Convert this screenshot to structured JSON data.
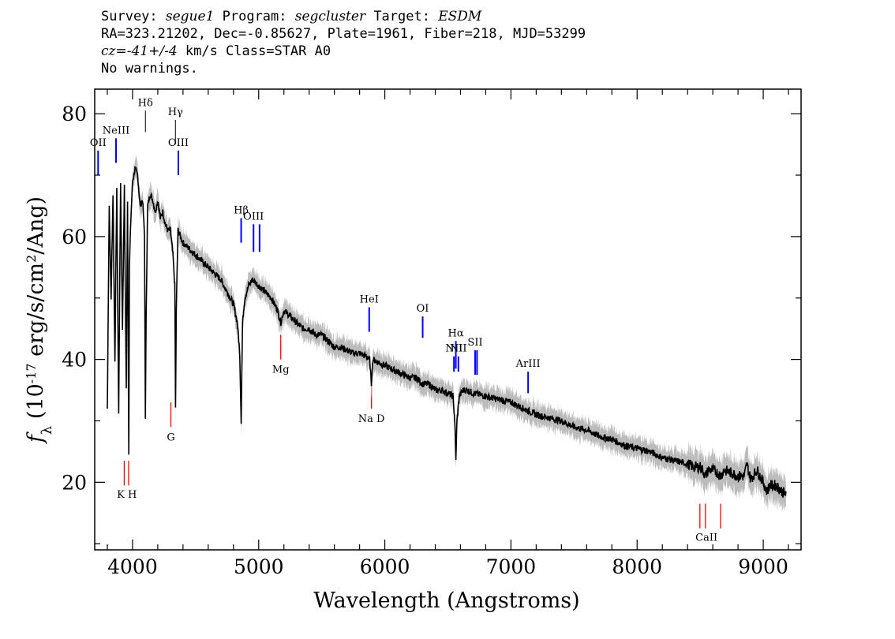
{
  "header": {
    "line1": {
      "survey_label": "Survey: ",
      "survey": "segue1",
      "program_label": " Program: ",
      "program": "segcluster",
      "target_label": " Target: ",
      "target": "ESDM"
    },
    "line2": "RA=323.21202, Dec=-0.85627, Plate=1961, Fiber=218, MJD=53299",
    "line3": {
      "cz": "cz=-41+/-4",
      "rest": " km/s Class=STAR A0"
    },
    "line4": "No warnings."
  },
  "chart_data": {
    "type": "line",
    "xlabel": "Wavelength (Angstroms)",
    "ylabel_f": "f",
    "ylabel_sub": "λ",
    "ylabel_rest_a": " (10",
    "ylabel_exp": "-17",
    "ylabel_rest_b": " erg/s/cm",
    "ylabel_exp2": "2",
    "ylabel_rest_c": "/Ang)",
    "xlim": [
      3700,
      9300
    ],
    "ylim": [
      9,
      84
    ],
    "x_ticks": [
      4000,
      5000,
      6000,
      7000,
      8000,
      9000
    ],
    "x_tick_labels": [
      "4000",
      "5000",
      "6000",
      "7000",
      "8000",
      "9000"
    ],
    "y_ticks": [
      20,
      40,
      60,
      80
    ],
    "y_tick_labels": [
      "20",
      "40",
      "60",
      "80"
    ],
    "colors": {
      "spectrum": "#000000",
      "error": "#bbbbbb",
      "emission": "#0000ff",
      "absorption": "#ff0000"
    },
    "series": [
      {
        "x": [
          3800,
          3815,
          3830,
          3845,
          3860,
          3875,
          3890,
          3905,
          3920,
          3935,
          3950,
          3960,
          3970,
          3975,
          3985,
          4000,
          4020,
          4040,
          4060,
          4080,
          4095,
          4102,
          4108,
          4120,
          4140,
          4160,
          4180,
          4200,
          4220,
          4240,
          4260,
          4280,
          4300,
          4320,
          4335,
          4341,
          4347,
          4360,
          4400,
          4450,
          4500,
          4550,
          4600,
          4650,
          4700,
          4750,
          4800,
          4830,
          4850,
          4861,
          4872,
          4890,
          4920,
          4950,
          5000,
          5050,
          5100,
          5150,
          5175,
          5200,
          5250,
          5300,
          5350,
          5400,
          5450,
          5500,
          5550,
          5600,
          5650,
          5700,
          5750,
          5800,
          5850,
          5880,
          5893,
          5905,
          5950,
          6000,
          6050,
          6100,
          6150,
          6200,
          6250,
          6300,
          6350,
          6400,
          6450,
          6500,
          6540,
          6555,
          6563,
          6572,
          6590,
          6620,
          6650,
          6700,
          6800,
          6900,
          7000,
          7100,
          7200,
          7300,
          7400,
          7500,
          7600,
          7700,
          7800,
          7900,
          8000,
          8100,
          8200,
          8300,
          8400,
          8450,
          8500,
          8520,
          8542,
          8565,
          8600,
          8640,
          8662,
          8690,
          8750,
          8800,
          8850,
          8870,
          8900,
          8950,
          9000,
          9030,
          9050,
          9100,
          9150,
          9180
        ],
        "y": [
          32,
          65,
          50,
          67,
          40,
          68,
          31,
          69,
          45,
          68,
          35,
          66,
          25,
          55,
          62,
          69,
          71,
          70,
          65,
          66,
          60,
          30,
          48,
          65,
          67,
          66,
          64,
          66,
          63,
          64,
          62,
          61,
          61,
          57,
          52,
          32,
          48,
          61,
          59,
          58,
          57,
          56,
          55,
          54,
          53,
          51,
          49,
          46,
          41,
          30,
          46,
          50,
          52,
          53,
          52,
          51,
          50,
          48,
          46,
          48,
          47,
          46,
          45,
          45,
          44,
          44,
          43,
          42,
          42,
          41.5,
          41,
          41,
          40.5,
          40,
          36,
          40,
          39.5,
          39,
          38.5,
          38,
          37.5,
          37,
          37,
          36,
          36,
          35,
          35,
          34.5,
          34,
          30,
          23.5,
          30,
          34,
          35,
          35,
          34.5,
          34,
          33.5,
          33,
          32,
          31,
          30.5,
          30,
          29,
          28.5,
          27.5,
          27,
          26,
          25.5,
          25,
          24,
          23.5,
          23,
          22.5,
          22.5,
          22,
          21,
          22,
          22,
          21.5,
          21,
          22,
          21.5,
          21,
          21,
          23,
          20.5,
          22,
          20,
          18.5,
          19.5,
          19.5,
          18.5,
          18
        ]
      }
    ],
    "emission_lines": [
      {
        "label": "OII",
        "x": 3727,
        "y1": 74,
        "y2": 70
      },
      {
        "label": "NeIII",
        "x": 3869,
        "y1": 76,
        "y2": 72
      },
      {
        "label": "Hδ",
        "x": 4102,
        "y1": 80.5,
        "y2": 77,
        "black": true
      },
      {
        "label": "Hγ",
        "x": 4340,
        "y1": 79,
        "y2": 75,
        "black": true
      },
      {
        "label": "OIII",
        "x": 4363,
        "y1": 74,
        "y2": 70
      },
      {
        "label": "Hβ",
        "x": 4861,
        "y1": 63,
        "y2": 59
      },
      {
        "label": "OIII",
        "x": 4959,
        "y1": 62,
        "y2": 57.5
      },
      {
        "label": "",
        "x": 5007,
        "y1": 62,
        "y2": 57.5
      },
      {
        "label": "HeI",
        "x": 5876,
        "y1": 48.5,
        "y2": 44.5
      },
      {
        "label": "OI",
        "x": 6300,
        "y1": 47,
        "y2": 43.5
      },
      {
        "label": "NII",
        "x": 6548,
        "y1": 40.5,
        "y2": 38
      },
      {
        "label": "Hα",
        "x": 6563,
        "y1": 43,
        "y2": 38.5
      },
      {
        "label": "NII",
        "x": 6583,
        "y1": 40.5,
        "y2": 38
      },
      {
        "label": "SII",
        "x": 6716,
        "y1": 41.5,
        "y2": 37.5
      },
      {
        "label": "",
        "x": 6731,
        "y1": 41.5,
        "y2": 37.5
      },
      {
        "label": "ArIII",
        "x": 7136,
        "y1": 38,
        "y2": 34.5
      }
    ],
    "absorption_lines": [
      {
        "label": "G",
        "x": 4304,
        "y1": 33,
        "y2": 29
      },
      {
        "label": "Mg",
        "x": 5175,
        "y1": 44,
        "y2": 40
      },
      {
        "label": "Na D",
        "x": 5894,
        "y1": 36,
        "y2": 32
      },
      {
        "label": "",
        "x": 3934,
        "y1": 23.5,
        "y2": 19.5
      },
      {
        "label": "",
        "x": 3969,
        "y1": 23.5,
        "y2": 19.5
      },
      {
        "label": "",
        "x": 8498,
        "y1": 16.5,
        "y2": 12.5
      },
      {
        "label": "",
        "x": 8542,
        "y1": 16.5,
        "y2": 12.5
      },
      {
        "label": "",
        "x": 8662,
        "y1": 16.5,
        "y2": 12.5
      }
    ],
    "extra_labels": [
      {
        "label": "K H",
        "x": 3955,
        "y": 17.5
      },
      {
        "label": "CaII",
        "x": 8550,
        "y": 10.5
      }
    ]
  }
}
